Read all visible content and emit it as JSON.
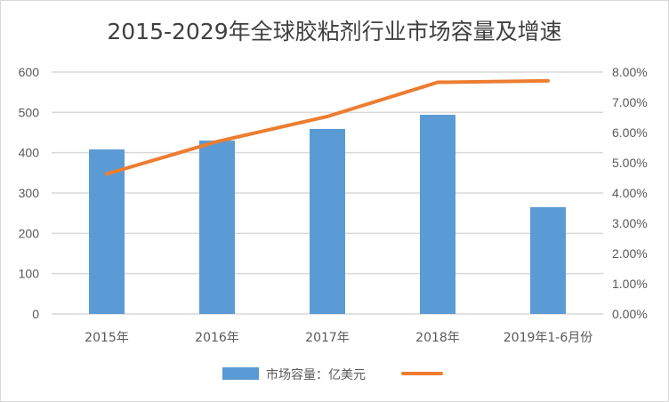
{
  "chart_data": {
    "type": "bar+line",
    "title": "2015-2029年全球胶粘剂行业市场容量及增速",
    "categories": [
      "2015年",
      "2016年",
      "2017年",
      "2018年",
      "2019年1-6月份"
    ],
    "series": [
      {
        "name": "市场容量：亿美元",
        "type": "bar",
        "axis": "left",
        "color": "#5b9bd5",
        "values": [
          408,
          430,
          459,
          494,
          265
        ]
      },
      {
        "name": "",
        "type": "line",
        "axis": "right",
        "color": "#ed7d31",
        "values": [
          0.0463,
          0.057,
          0.0653,
          0.0766,
          0.0771
        ]
      }
    ],
    "y_left": {
      "range": [
        0,
        600
      ],
      "ticks": [
        "0",
        "100",
        "200",
        "300",
        "400",
        "500",
        "600"
      ]
    },
    "y_right": {
      "range": [
        0,
        0.08
      ],
      "ticks": [
        "0.00%",
        "1.00%",
        "2.00%",
        "3.00%",
        "4.00%",
        "5.00%",
        "6.00%",
        "7.00%",
        "8.00%"
      ]
    },
    "grid": true,
    "gridline_color": "#d9d9d9",
    "legend_placement": "bottom"
  }
}
